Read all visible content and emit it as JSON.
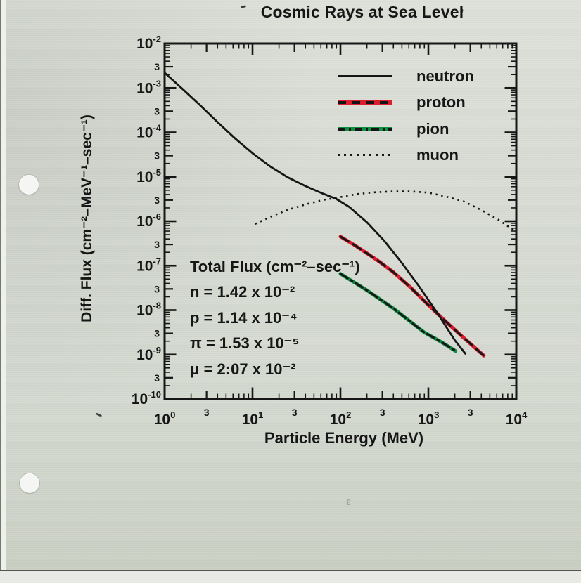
{
  "colors": {
    "paper": "#d7dcd3",
    "ink": "#161616",
    "proton_red": "#dc1b2d",
    "pion_green": "#0d8f42"
  },
  "chart_data": {
    "type": "line",
    "title": "Cosmic Rays at Sea Level",
    "xlabel": "Particle Energy (MeV)",
    "ylabel": "Diff. Flux (cm⁻²–MeV⁻¹–sec⁻¹)",
    "x_scale": "log",
    "y_scale": "log",
    "x_log_range": [
      0,
      4
    ],
    "y_log_range": [
      -10,
      -2
    ],
    "x_tick_exponents": [
      0,
      1,
      2,
      3,
      4
    ],
    "y_tick_exponents": [
      -2,
      -3,
      -4,
      -5,
      -6,
      -7,
      -8,
      -9,
      -10
    ],
    "minor_tick_label": "3",
    "grid": false,
    "legend": {
      "position": "top-right-inside",
      "items": [
        {
          "label": "neutron",
          "style": "solid",
          "color": "#151515"
        },
        {
          "label": "proton",
          "style": "red-with-black-dashes",
          "color": "#dc1b2d"
        },
        {
          "label": "pion",
          "style": "green-with-black-dashdot",
          "color": "#0d8f42"
        },
        {
          "label": "muon",
          "style": "dotted",
          "color": "#151515"
        }
      ]
    },
    "annotation": {
      "lines": [
        "Total Flux (cm⁻²–sec⁻¹)",
        "n = 1.42 x 10⁻²",
        "p = 1.14 x 10⁻⁴",
        "π = 1.53 x 10⁻⁵",
        "μ = 2:07 x 10⁻²"
      ]
    },
    "series": [
      {
        "name": "muon",
        "style": "dotted",
        "color": "#151515",
        "points_E_MeV_flux": [
          [
            10.7,
            8.7e-07
          ],
          [
            16,
            1.26e-06
          ],
          [
            25,
            1.8e-06
          ],
          [
            40,
            2.4e-06
          ],
          [
            63,
            3e-06
          ],
          [
            100,
            3.5e-06
          ],
          [
            158,
            4.1e-06
          ],
          [
            251,
            4.5e-06
          ],
          [
            398,
            4.7e-06
          ],
          [
            631,
            4.7e-06
          ],
          [
            1000,
            4.4e-06
          ],
          [
            1585,
            3.6e-06
          ],
          [
            2512,
            2.8e-06
          ],
          [
            3981,
            1.8e-06
          ],
          [
            6310,
            1.07e-06
          ],
          [
            9330,
            6.3e-07
          ]
        ]
      },
      {
        "name": "pion",
        "style": "green-with-black-dashdot",
        "color": "#0d8f42",
        "points_E_MeV_flux": [
          [
            100,
            6.6e-08
          ],
          [
            200,
            2.8e-08
          ],
          [
            398,
            1.1e-08
          ],
          [
            891,
            3.2e-09
          ],
          [
            1413,
            1.9e-09
          ],
          [
            2042,
            1.2e-09
          ]
        ]
      },
      {
        "name": "proton",
        "style": "red-with-black-dashes",
        "color": "#dc1b2d",
        "points_E_MeV_flux": [
          [
            100,
            4.5e-07
          ],
          [
            141,
            3e-07
          ],
          [
            200,
            1.9e-07
          ],
          [
            282,
            1.2e-07
          ],
          [
            398,
            7.2e-08
          ],
          [
            631,
            3.2e-08
          ],
          [
            1000,
            1.3e-08
          ],
          [
            1585,
            5.5e-09
          ],
          [
            2512,
            2.4e-09
          ],
          [
            4270,
            9.5e-10
          ]
        ]
      },
      {
        "name": "neutron",
        "style": "solid",
        "color": "#151515",
        "points_E_MeV_flux": [
          [
            1.0,
            0.0022
          ],
          [
            1.6,
            0.00095
          ],
          [
            2.5,
            0.00042
          ],
          [
            4.0,
            0.00017
          ],
          [
            6.3,
            7.4e-05
          ],
          [
            10,
            3.4e-05
          ],
          [
            16,
            1.7e-05
          ],
          [
            25,
            9.8e-06
          ],
          [
            40,
            6.2e-06
          ],
          [
            63,
            4.2e-06
          ],
          [
            89,
            3.2e-06
          ],
          [
            126,
            2.1e-06
          ],
          [
            200,
            9.5e-07
          ],
          [
            316,
            3.6e-07
          ],
          [
            500,
            1.15e-07
          ],
          [
            794,
            3.3e-08
          ],
          [
            1260,
            8.7e-09
          ],
          [
            2000,
            2.1e-09
          ],
          [
            2630,
            1.05e-09
          ]
        ]
      }
    ]
  }
}
